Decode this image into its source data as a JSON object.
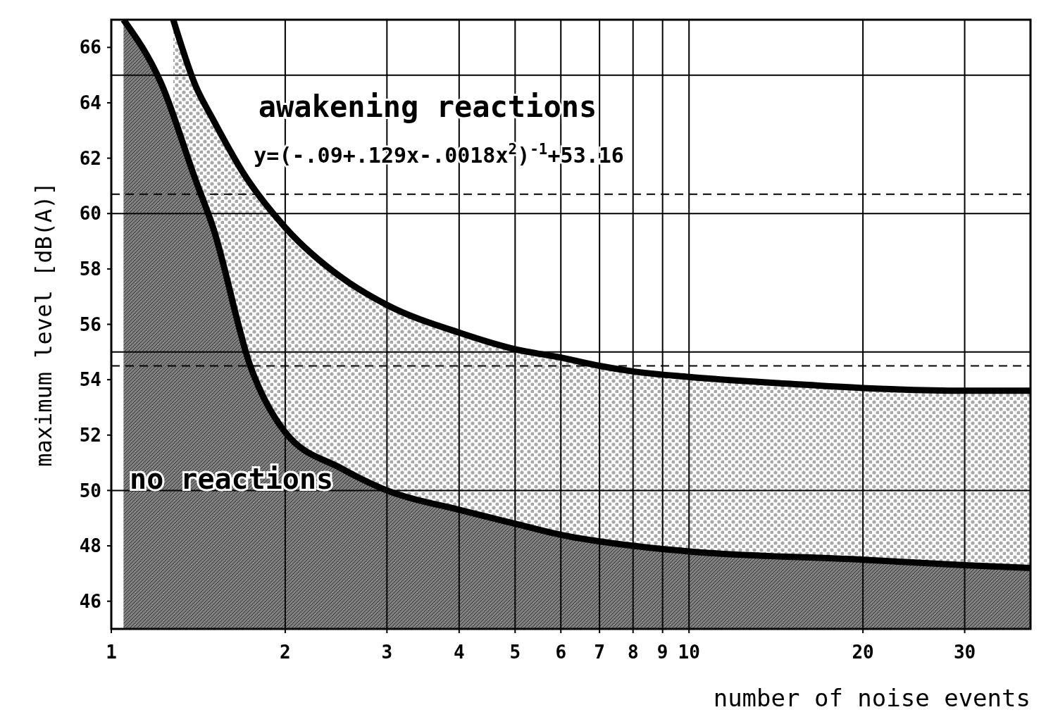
{
  "chart_data": {
    "type": "area",
    "xlabel": "number of noise events",
    "ylabel": "maximum level [dB(A)]",
    "annotations": [
      "awakening reactions",
      "y=(-.09+.129x-.0018x$^{2}$)$^{-1}$+53.16",
      "no reactions"
    ],
    "log": "x",
    "grid": "x",
    "xlim": [
      1,
      39
    ],
    "ylim": [
      45,
      67
    ],
    "xticks": [
      1,
      2,
      3,
      4,
      5,
      6,
      7,
      8,
      9,
      10,
      20,
      30
    ],
    "yticks": [
      46,
      48,
      50,
      52,
      54,
      56,
      58,
      60,
      62,
      64,
      66
    ],
    "series": [
      {
        "color": "#a8a8a8",
        "x": [
          1.28,
          1.4,
          1.5,
          1.7,
          2,
          2.5,
          3,
          4,
          5,
          6,
          7,
          8,
          10,
          15,
          20,
          30,
          39
        ],
        "values": [
          67,
          64.6,
          63.4,
          61.4,
          59.5,
          57.7,
          56.7,
          55.7,
          55.1,
          54.8,
          54.5,
          54.3,
          54.1,
          53.85,
          53.7,
          53.6,
          53.6
        ]
      },
      {
        "color": "#808080",
        "x": [
          1.05,
          1.22,
          1.4,
          1.5,
          1.74,
          2,
          2.5,
          3,
          4,
          5,
          6,
          8,
          10,
          20,
          30,
          39
        ],
        "values": [
          67,
          64.7,
          61.2,
          59.5,
          54.5,
          52.1,
          50.8,
          50,
          49.3,
          48.8,
          48.4,
          48,
          47.8,
          47.5,
          47.3,
          47.2
        ]
      }
    ],
    "ref_lines": [
      {
        "axis": "y",
        "value": 65,
        "color": "#000000",
        "line_style": "solid"
      },
      {
        "axis": "y",
        "value": 60,
        "color": "#000000",
        "line_style": "solid"
      },
      {
        "axis": "y",
        "value": 55,
        "color": "#000000",
        "line_style": "solid"
      },
      {
        "axis": "y",
        "value": 50,
        "color": "#000000",
        "line_style": "solid"
      },
      {
        "axis": "y",
        "value": 60.7,
        "color": "#000000",
        "line_style": "dashed"
      },
      {
        "axis": "y",
        "value": 54.5,
        "color": "#000000",
        "line_style": "dashed"
      }
    ]
  }
}
